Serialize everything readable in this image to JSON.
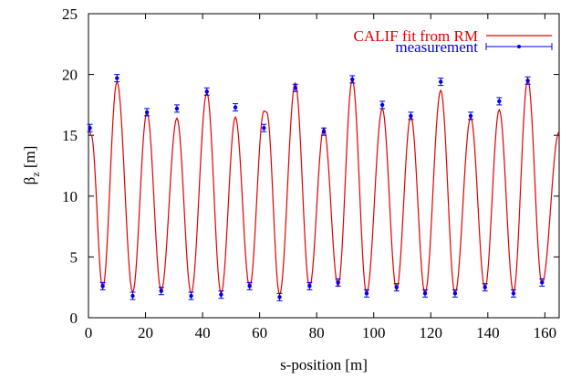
{
  "chart_data": {
    "type": "line",
    "xlabel": "s-position [m]",
    "ylabel_main": "β",
    "ylabel_sub": "z",
    "ylabel_unit": " [m]",
    "xlim": [
      0,
      165
    ],
    "ylim": [
      0,
      25
    ],
    "xticks": [
      0,
      20,
      40,
      60,
      80,
      100,
      120,
      140,
      160
    ],
    "yticks": [
      0,
      5,
      10,
      15,
      20,
      25
    ],
    "grid": false,
    "legend_position": "top-right",
    "colors": {
      "fit": "#e00000",
      "measurement": "#0000ee",
      "axis": "#000000"
    },
    "series": [
      {
        "name": "CALIF fit from RM",
        "style": "line",
        "x": [
          0,
          1,
          5,
          10,
          15.5,
          20.5,
          25.5,
          31,
          36,
          41.5,
          46.5,
          51.5,
          56.5,
          61.5,
          62.5,
          67,
          72.5,
          77.5,
          82.5,
          87.5,
          92.5,
          97.5,
          103,
          108,
          113,
          118,
          123.5,
          128.5,
          134,
          139,
          144,
          149,
          154,
          159,
          165
        ],
        "y": [
          15.6,
          15.0,
          2.4,
          19.4,
          2.1,
          16.9,
          2.2,
          16.4,
          2.0,
          18.5,
          2.0,
          16.5,
          2.5,
          17.0,
          16.9,
          1.9,
          19.3,
          2.5,
          15.6,
          2.6,
          19.6,
          2.0,
          17.2,
          2.3,
          16.6,
          2.0,
          18.7,
          2.0,
          16.5,
          2.4,
          17.1,
          2.1,
          19.6,
          2.8,
          15.3
        ]
      },
      {
        "name": "measurement",
        "style": "points-with-errorbars",
        "x": [
          0.5,
          5,
          10,
          15.5,
          20.5,
          25.5,
          31,
          36,
          41.5,
          46.5,
          51.5,
          56.5,
          61.5,
          67,
          72.5,
          77.5,
          82.5,
          87.5,
          92.5,
          97.5,
          103,
          108,
          113,
          118,
          123.5,
          128.5,
          134,
          139,
          144,
          149,
          154,
          159
        ],
        "y": [
          15.6,
          2.6,
          19.7,
          1.8,
          16.9,
          2.2,
          17.2,
          1.8,
          18.6,
          1.9,
          17.3,
          2.6,
          15.6,
          1.7,
          18.9,
          2.6,
          15.3,
          2.9,
          19.6,
          2.0,
          17.5,
          2.5,
          16.6,
          2.0,
          19.4,
          2.0,
          16.6,
          2.5,
          17.8,
          2.0,
          19.5,
          2.9
        ],
        "err": [
          0.3,
          0.3,
          0.3,
          0.3,
          0.3,
          0.3,
          0.3,
          0.3,
          0.3,
          0.3,
          0.3,
          0.3,
          0.3,
          0.3,
          0.3,
          0.3,
          0.3,
          0.3,
          0.3,
          0.3,
          0.3,
          0.3,
          0.3,
          0.3,
          0.3,
          0.3,
          0.3,
          0.3,
          0.3,
          0.3,
          0.3,
          0.3
        ]
      }
    ]
  }
}
